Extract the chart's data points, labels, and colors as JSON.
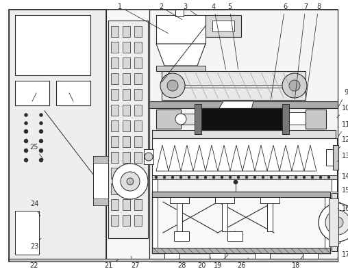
{
  "figsize": [
    5.08,
    3.93
  ],
  "dpi": 100,
  "lc": "#2a2a2a",
  "bg": "#ffffff"
}
